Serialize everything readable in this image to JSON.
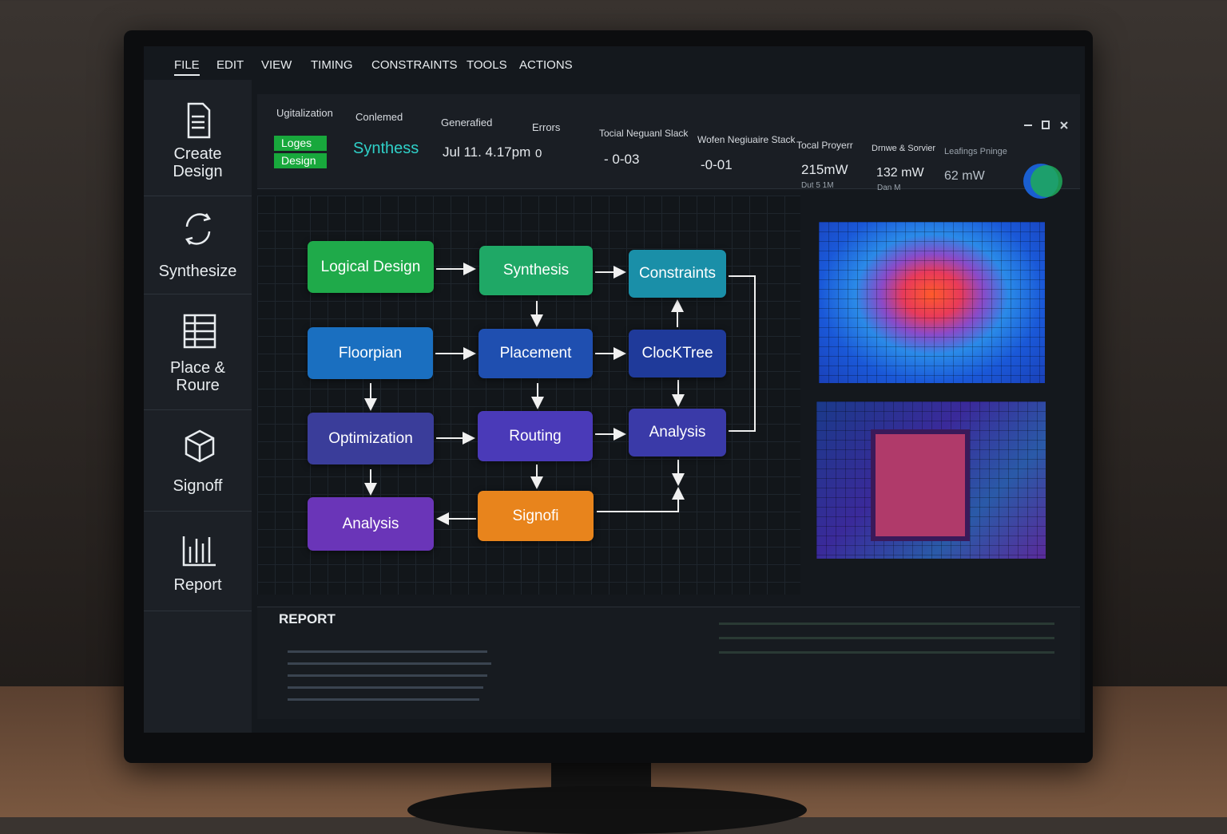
{
  "menu": [
    "FILE",
    "EDIT",
    "VIEW",
    "TIMING",
    "CONSTRAINTS",
    "TOOLS",
    "ACTIONS"
  ],
  "sidebar": [
    "Create Design",
    "Synthesize",
    "Place & Roure",
    "Signoff",
    "Report"
  ],
  "header": {
    "columns": [
      {
        "label": "Ugitalization",
        "badges": [
          "Loges",
          "Design"
        ]
      },
      {
        "label": "Conlemed",
        "value": "Synthess"
      },
      {
        "label": "Generafied",
        "value": "Jul 11. 4.17pm"
      },
      {
        "label": "Errors",
        "value": "0"
      },
      {
        "label": "Tocial Neguanl Slack",
        "value": "- 0-03"
      },
      {
        "label": "Wofen Negiuaire Stack",
        "value": "-0-01"
      },
      {
        "label": "Tocal Proyerr",
        "value": "215mW",
        "sub": "Dut 5 1M"
      },
      {
        "label": "Drnwe & Sorvier",
        "value": "132 mW",
        "sub": "Dan M"
      },
      {
        "label": "Leafings Pninge",
        "value": "62 mW"
      }
    ]
  },
  "flow": {
    "nodes": [
      "Logical Design",
      "Synthesis",
      "Constraints",
      "Floorpian",
      "Placement",
      "ClocKTree",
      "Optimization",
      "Routing",
      "Analysis",
      "Analysis",
      "Signofi"
    ]
  },
  "report": {
    "title": "REPORT"
  }
}
